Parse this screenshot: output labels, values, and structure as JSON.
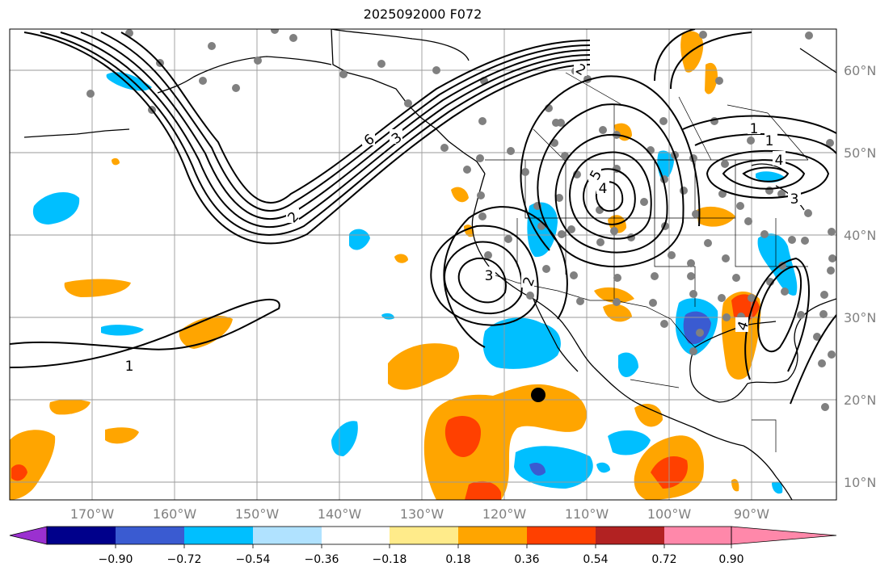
{
  "title": "2025092000 F072",
  "map": {
    "lon_ticks": [
      "170°W",
      "160°W",
      "150°W",
      "140°W",
      "130°W",
      "120°W",
      "110°W",
      "100°W",
      "90°W"
    ],
    "lat_ticks": [
      "10°N",
      "20°N",
      "30°N",
      "40°N",
      "50°N",
      "60°N"
    ],
    "contour_labels": [
      "1",
      "2",
      "3",
      "4",
      "5",
      "6",
      "1",
      "2",
      "3",
      "4",
      "1",
      "2",
      "3",
      "4"
    ],
    "marker_label": ""
  },
  "colorbar": {
    "ticks": [
      "−0.90",
      "−0.72",
      "−0.54",
      "−0.36",
      "−0.18",
      "0.18",
      "0.36",
      "0.54",
      "0.72",
      "0.90"
    ],
    "colors": [
      "#9b30d0",
      "#00008b",
      "#3a5bd1",
      "#00bfff",
      "#b0e2ff",
      "#ffffff",
      "#ffeb8a",
      "#ffa500",
      "#ff4000",
      "#b22222",
      "#ff88aa"
    ]
  }
}
